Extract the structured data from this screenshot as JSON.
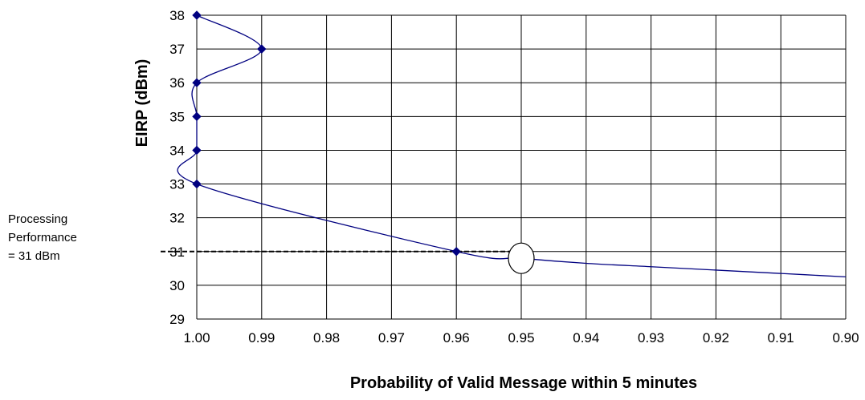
{
  "annotation": {
    "lines": [
      "Processing",
      "Performance",
      "= 31 dBm"
    ]
  },
  "chart_data": {
    "type": "line",
    "title": "",
    "xlabel": "Probability of Valid Message within 5 minutes",
    "ylabel": "EIRP (dBm)",
    "xlim": [
      1.0,
      0.9
    ],
    "x_reversed": true,
    "ylim": [
      29,
      38
    ],
    "grid": true,
    "x_ticks": [
      1.0,
      0.99,
      0.98,
      0.97,
      0.96,
      0.95,
      0.94,
      0.93,
      0.92,
      0.91,
      0.9
    ],
    "x_tick_labels": [
      "1.00",
      "0.99",
      "0.98",
      "0.97",
      "0.96",
      "0.95",
      "0.94",
      "0.93",
      "0.92",
      "0.91",
      "0.90"
    ],
    "y_ticks": [
      29,
      30,
      31,
      32,
      33,
      34,
      35,
      36,
      37,
      38
    ],
    "y_tick_labels": [
      "29",
      "30",
      "31",
      "32",
      "33",
      "34",
      "35",
      "36",
      "37",
      "38"
    ],
    "series": [
      {
        "x": [
          1.0,
          0.99,
          1.0,
          1.0,
          1.0,
          1.0,
          0.96
        ],
        "y": [
          38,
          37,
          36,
          35,
          34,
          33,
          31
        ]
      }
    ],
    "curve_extension": {
      "x": [
        0.96,
        0.95,
        0.94,
        0.93,
        0.92,
        0.91,
        0.9
      ],
      "y": [
        31,
        30.8,
        30.65,
        30.55,
        30.45,
        30.35,
        30.25
      ]
    },
    "reference_line": {
      "y": 31,
      "x_from": 1.0,
      "x_to": 0.949,
      "style": "dashed"
    },
    "highlight_marker": {
      "x": 0.95,
      "y": 30.8,
      "shape": "ellipse"
    },
    "colors": {
      "series": "#000080",
      "grid": "#000000",
      "reference": "#000000"
    }
  }
}
